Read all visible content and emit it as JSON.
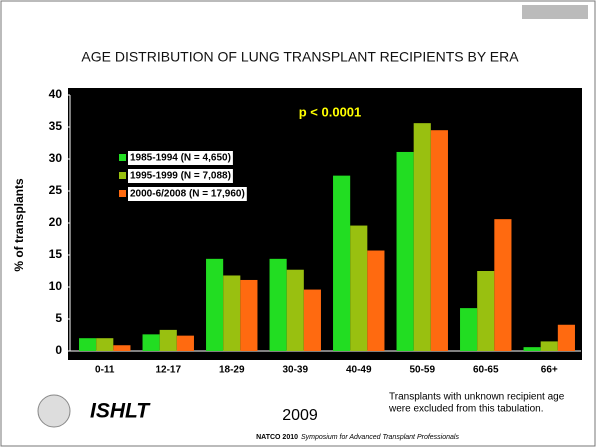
{
  "chart_data": {
    "type": "bar",
    "title": "AGE DISTRIBUTION OF LUNG TRANSPLANT RECIPIENTS BY ERA",
    "ylabel": "% of transplants",
    "annotation": "p < 0.0001",
    "categories": [
      "0-11",
      "12-17",
      "18-29",
      "30-39",
      "40-49",
      "50-59",
      "60-65",
      "66+"
    ],
    "series": [
      {
        "name": "1985-1994 (N = 4,650)",
        "color": "#22dd22",
        "values": [
          2.0,
          2.6,
          14.4,
          14.4,
          27.4,
          31.1,
          6.7,
          0.6
        ]
      },
      {
        "name": "1995-1999 (N = 7,088)",
        "color": "#99c010",
        "values": [
          2.0,
          3.3,
          11.8,
          12.7,
          19.6,
          35.6,
          12.5,
          1.5
        ]
      },
      {
        "name": "2000-6/2008 (N = 17,960)",
        "color": "#ff6a10",
        "values": [
          0.9,
          2.4,
          11.1,
          9.6,
          15.7,
          34.5,
          20.6,
          4.1
        ]
      }
    ],
    "ylim": [
      0,
      40
    ],
    "yticks": [
      0,
      5,
      10,
      15,
      20,
      25,
      30,
      35,
      40
    ]
  },
  "slide": {
    "logo_text": "ISHLT",
    "year": "2009",
    "note": [
      "Transplants with unknown recipient age",
      "were excluded from this tabulation."
    ],
    "footer_bold": "NATCO 2010",
    "footer_italic": "Symposium for Advanced Transplant Professionals"
  }
}
